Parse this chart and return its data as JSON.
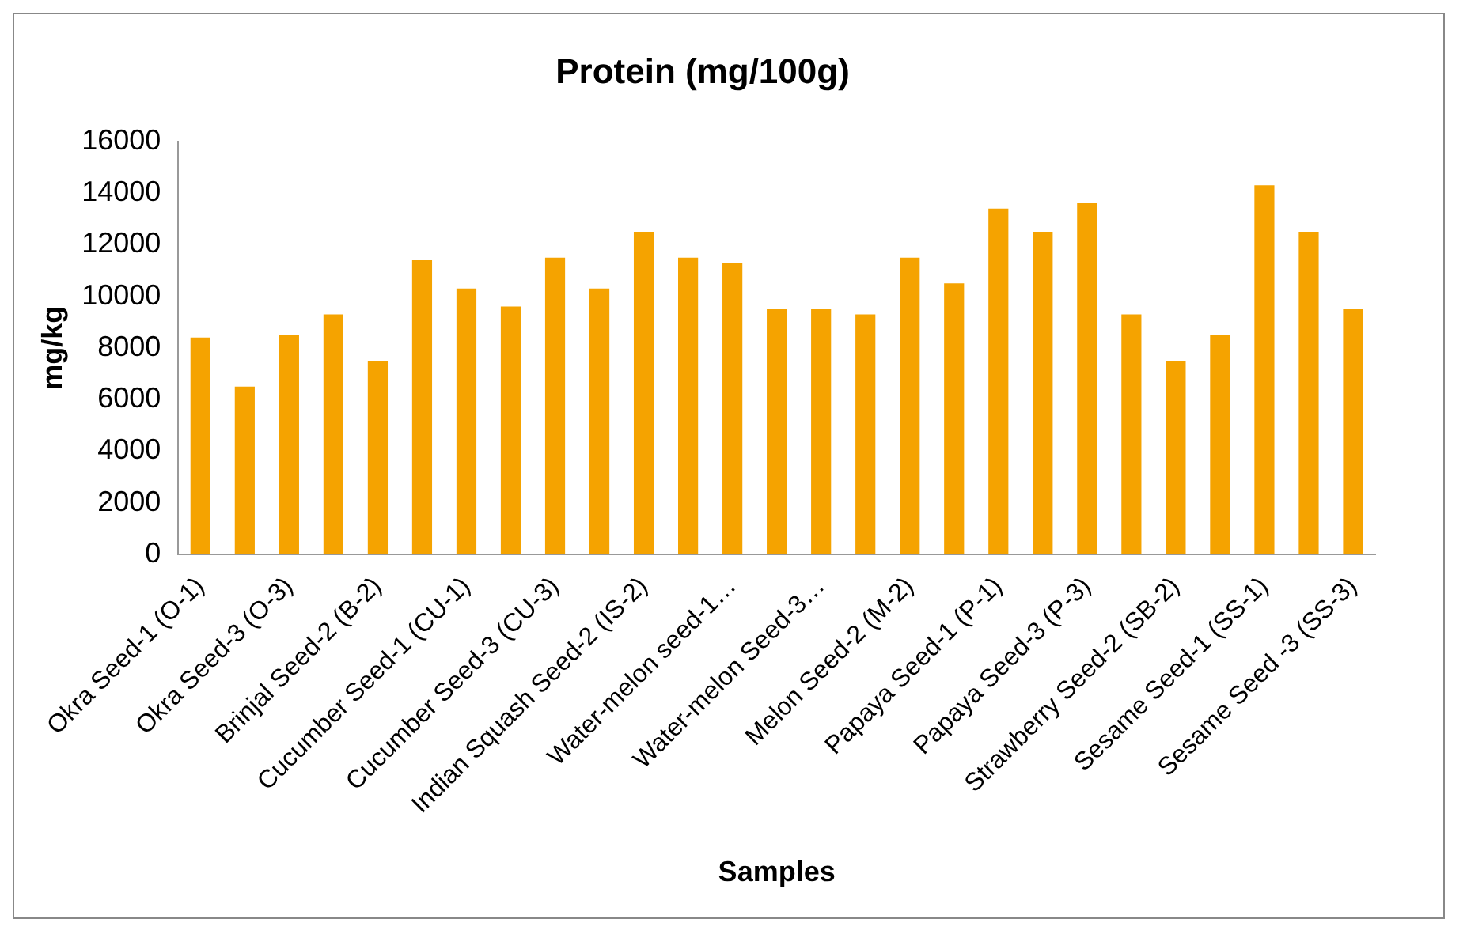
{
  "chart_data": {
    "type": "bar",
    "title": "Protein (mg/100g)",
    "xlabel": "Samples",
    "ylabel": "mg/kg",
    "categories": [
      "Okra Seed-1 (O-1)",
      null,
      "Okra Seed-3 (O-3)",
      null,
      "Brinjal Seed-2 (B-2)",
      null,
      "Cucumber Seed-1 (CU-1)",
      null,
      "Cucumber Seed-3 (CU-3)",
      null,
      "Indian Squash Seed-2 (IS-2)",
      null,
      "Water-melon seed-1…",
      null,
      "Water-melon Seed-3…",
      null,
      "Melon Seed-2 (M-2)",
      null,
      "Papaya Seed-1 (P-1)",
      null,
      "Papaya Seed-3 (P-3)",
      null,
      "Strawberry Seed-2 (SB-2)",
      null,
      "Sesame Seed-1 (SS-1)",
      null,
      "Sesame Seed -3 (SS-3)"
    ],
    "values": [
      8400,
      6500,
      8500,
      9300,
      7500,
      11400,
      10300,
      9600,
      11500,
      10300,
      12500,
      11500,
      11300,
      9500,
      9500,
      9300,
      11500,
      10500,
      13400,
      12500,
      13600,
      9300,
      7500,
      8500,
      14300,
      12500,
      9500
    ],
    "color": "#f5a300",
    "ylim": [
      0,
      16000
    ],
    "yticks": [
      0,
      2000,
      4000,
      6000,
      8000,
      10000,
      12000,
      14000,
      16000
    ],
    "grid": false
  }
}
